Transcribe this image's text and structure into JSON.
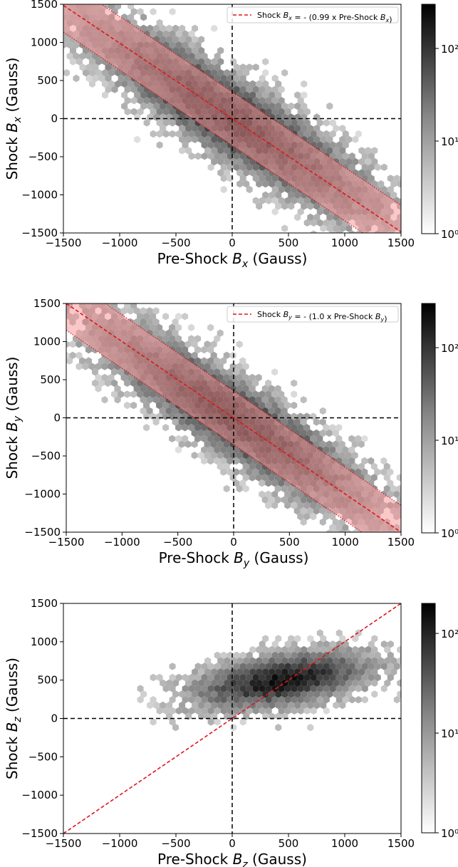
{
  "chart_data": [
    {
      "type": "heatmap",
      "xlabel_text": "Pre-Shock ",
      "xlabel_var": "B",
      "xlabel_sub": "x",
      "xlabel_unit": " (Gauss)",
      "ylabel_text": "Shock ",
      "ylabel_var": "B",
      "ylabel_sub": "x",
      "ylabel_unit": " (Gauss)",
      "xlim": [
        -1500,
        1500
      ],
      "ylim": [
        -1500,
        1500
      ],
      "xticks": [
        "−1500",
        "−1000",
        "−500",
        "0",
        "500",
        "1000",
        "1500"
      ],
      "yticks": [
        "−1500",
        "−1000",
        "−500",
        "0",
        "500",
        "1000",
        "1500"
      ],
      "legend_text": "Shock B_x = - (0.99 x Pre-Shock B_x)",
      "legend_placement": "top-right",
      "fit_line": {
        "slope": -0.99,
        "intercept": 0,
        "color": "#e0151b",
        "style": "dashed"
      },
      "band_halfwidth": 350,
      "band_color": "#f59a9a",
      "cluster": {
        "slope": -1.0,
        "spread_along": 950,
        "spread_across": 210,
        "center": [
          0,
          0
        ]
      },
      "colorbar": {
        "scale": "log",
        "min": 1,
        "max": 300,
        "ticks": [
          "10⁰",
          "10¹",
          "10²"
        ],
        "cmap": "Greys"
      }
    },
    {
      "type": "heatmap",
      "xlabel_text": "Pre-Shock ",
      "xlabel_var": "B",
      "xlabel_sub": "y",
      "xlabel_unit": " (Gauss)",
      "ylabel_text": "Shock ",
      "ylabel_var": "B",
      "ylabel_sub": "y",
      "ylabel_unit": " (Gauss)",
      "xlim": [
        -1500,
        1500
      ],
      "ylim": [
        -1500,
        1500
      ],
      "xticks": [
        "−1500",
        "−1000",
        "−500",
        "0",
        "500",
        "1000",
        "1500"
      ],
      "yticks": [
        "−1500",
        "−1000",
        "−500",
        "0",
        "500",
        "1000",
        "1500"
      ],
      "legend_text": "Shock B_y = - (1.0 x Pre-Shock B_y)",
      "legend_placement": "top-right",
      "fit_line": {
        "slope": -1.0,
        "intercept": 0,
        "color": "#e0151b",
        "style": "dashed"
      },
      "band_halfwidth": 350,
      "band_color": "#f59a9a",
      "cluster": {
        "slope": -1.0,
        "spread_along": 900,
        "spread_across": 200,
        "center": [
          0,
          0
        ]
      },
      "colorbar": {
        "scale": "log",
        "min": 1,
        "max": 300,
        "ticks": [
          "10⁰",
          "10¹",
          "10²"
        ],
        "cmap": "Greys"
      }
    },
    {
      "type": "heatmap",
      "xlabel_text": "Pre-Shock ",
      "xlabel_var": "B",
      "xlabel_sub": "z",
      "xlabel_unit": " (Gauss)",
      "ylabel_text": "Shock ",
      "ylabel_var": "B",
      "ylabel_sub": "z",
      "ylabel_unit": " (Gauss)",
      "xlim": [
        -1500,
        1500
      ],
      "ylim": [
        -1500,
        1500
      ],
      "xticks": [
        "−1500",
        "−1000",
        "−500",
        "0",
        "500",
        "1000",
        "1500"
      ],
      "yticks": [
        "−1500",
        "−1000",
        "−500",
        "0",
        "500",
        "1000",
        "1500"
      ],
      "legend_text": "",
      "fit_line": {
        "slope": 1.0,
        "intercept": 0,
        "color": "#e0151b",
        "style": "dashed"
      },
      "band_halfwidth": 0,
      "band_color": "",
      "cluster": {
        "slope": 0.25,
        "spread_along": 420,
        "spread_across": 170,
        "center": [
          450,
          500
        ]
      },
      "colorbar": {
        "scale": "log",
        "min": 1,
        "max": 200,
        "ticks": [
          "10⁰",
          "10¹",
          "10²"
        ],
        "cmap": "Greys"
      }
    }
  ]
}
